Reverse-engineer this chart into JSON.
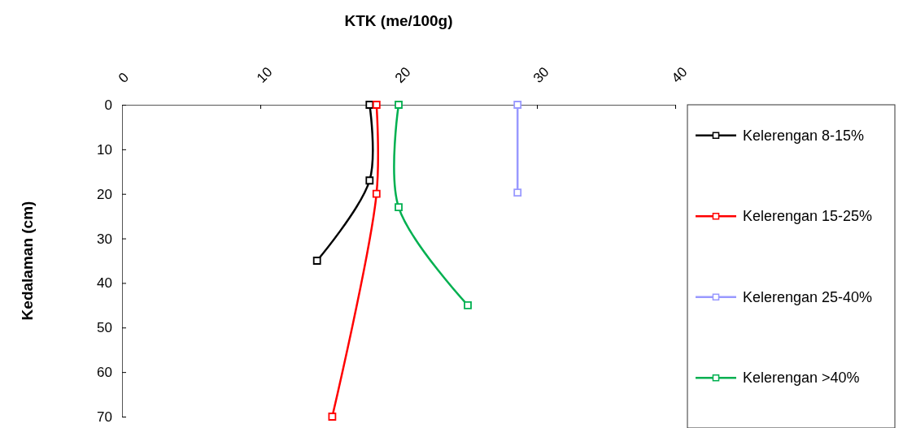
{
  "chart_data": {
    "type": "line",
    "xlabel": "KTK (me/100g)",
    "ylabel": "Kedalaman (cm)",
    "xlim": [
      0,
      40
    ],
    "xticks": [
      0,
      10,
      20,
      30,
      40
    ],
    "ylim": [
      70,
      0
    ],
    "yticks": [
      0,
      10,
      20,
      30,
      40,
      50,
      60,
      70
    ],
    "grid": false,
    "legend": "right",
    "marker": "square",
    "line_style": "solid",
    "series": [
      {
        "name": "Kelerengan 8-15%",
        "color": "#000000",
        "x": [
          17.9,
          17.9,
          14.1
        ],
        "values": [
          0,
          17,
          35
        ]
      },
      {
        "name": "Kelerengan 15-25%",
        "color": "#ff0000",
        "x": [
          18.4,
          18.4,
          15.2
        ],
        "values": [
          0,
          20,
          70
        ]
      },
      {
        "name": "Kelerengan 25-40%",
        "color": "#9999ff",
        "x": [
          28.6,
          28.6
        ],
        "values": [
          0,
          19.7
        ]
      },
      {
        "name": "Kelerengan >40%",
        "color": "#00b050",
        "x": [
          20.0,
          20.0,
          25.0
        ],
        "values": [
          0,
          23,
          45
        ]
      }
    ]
  }
}
